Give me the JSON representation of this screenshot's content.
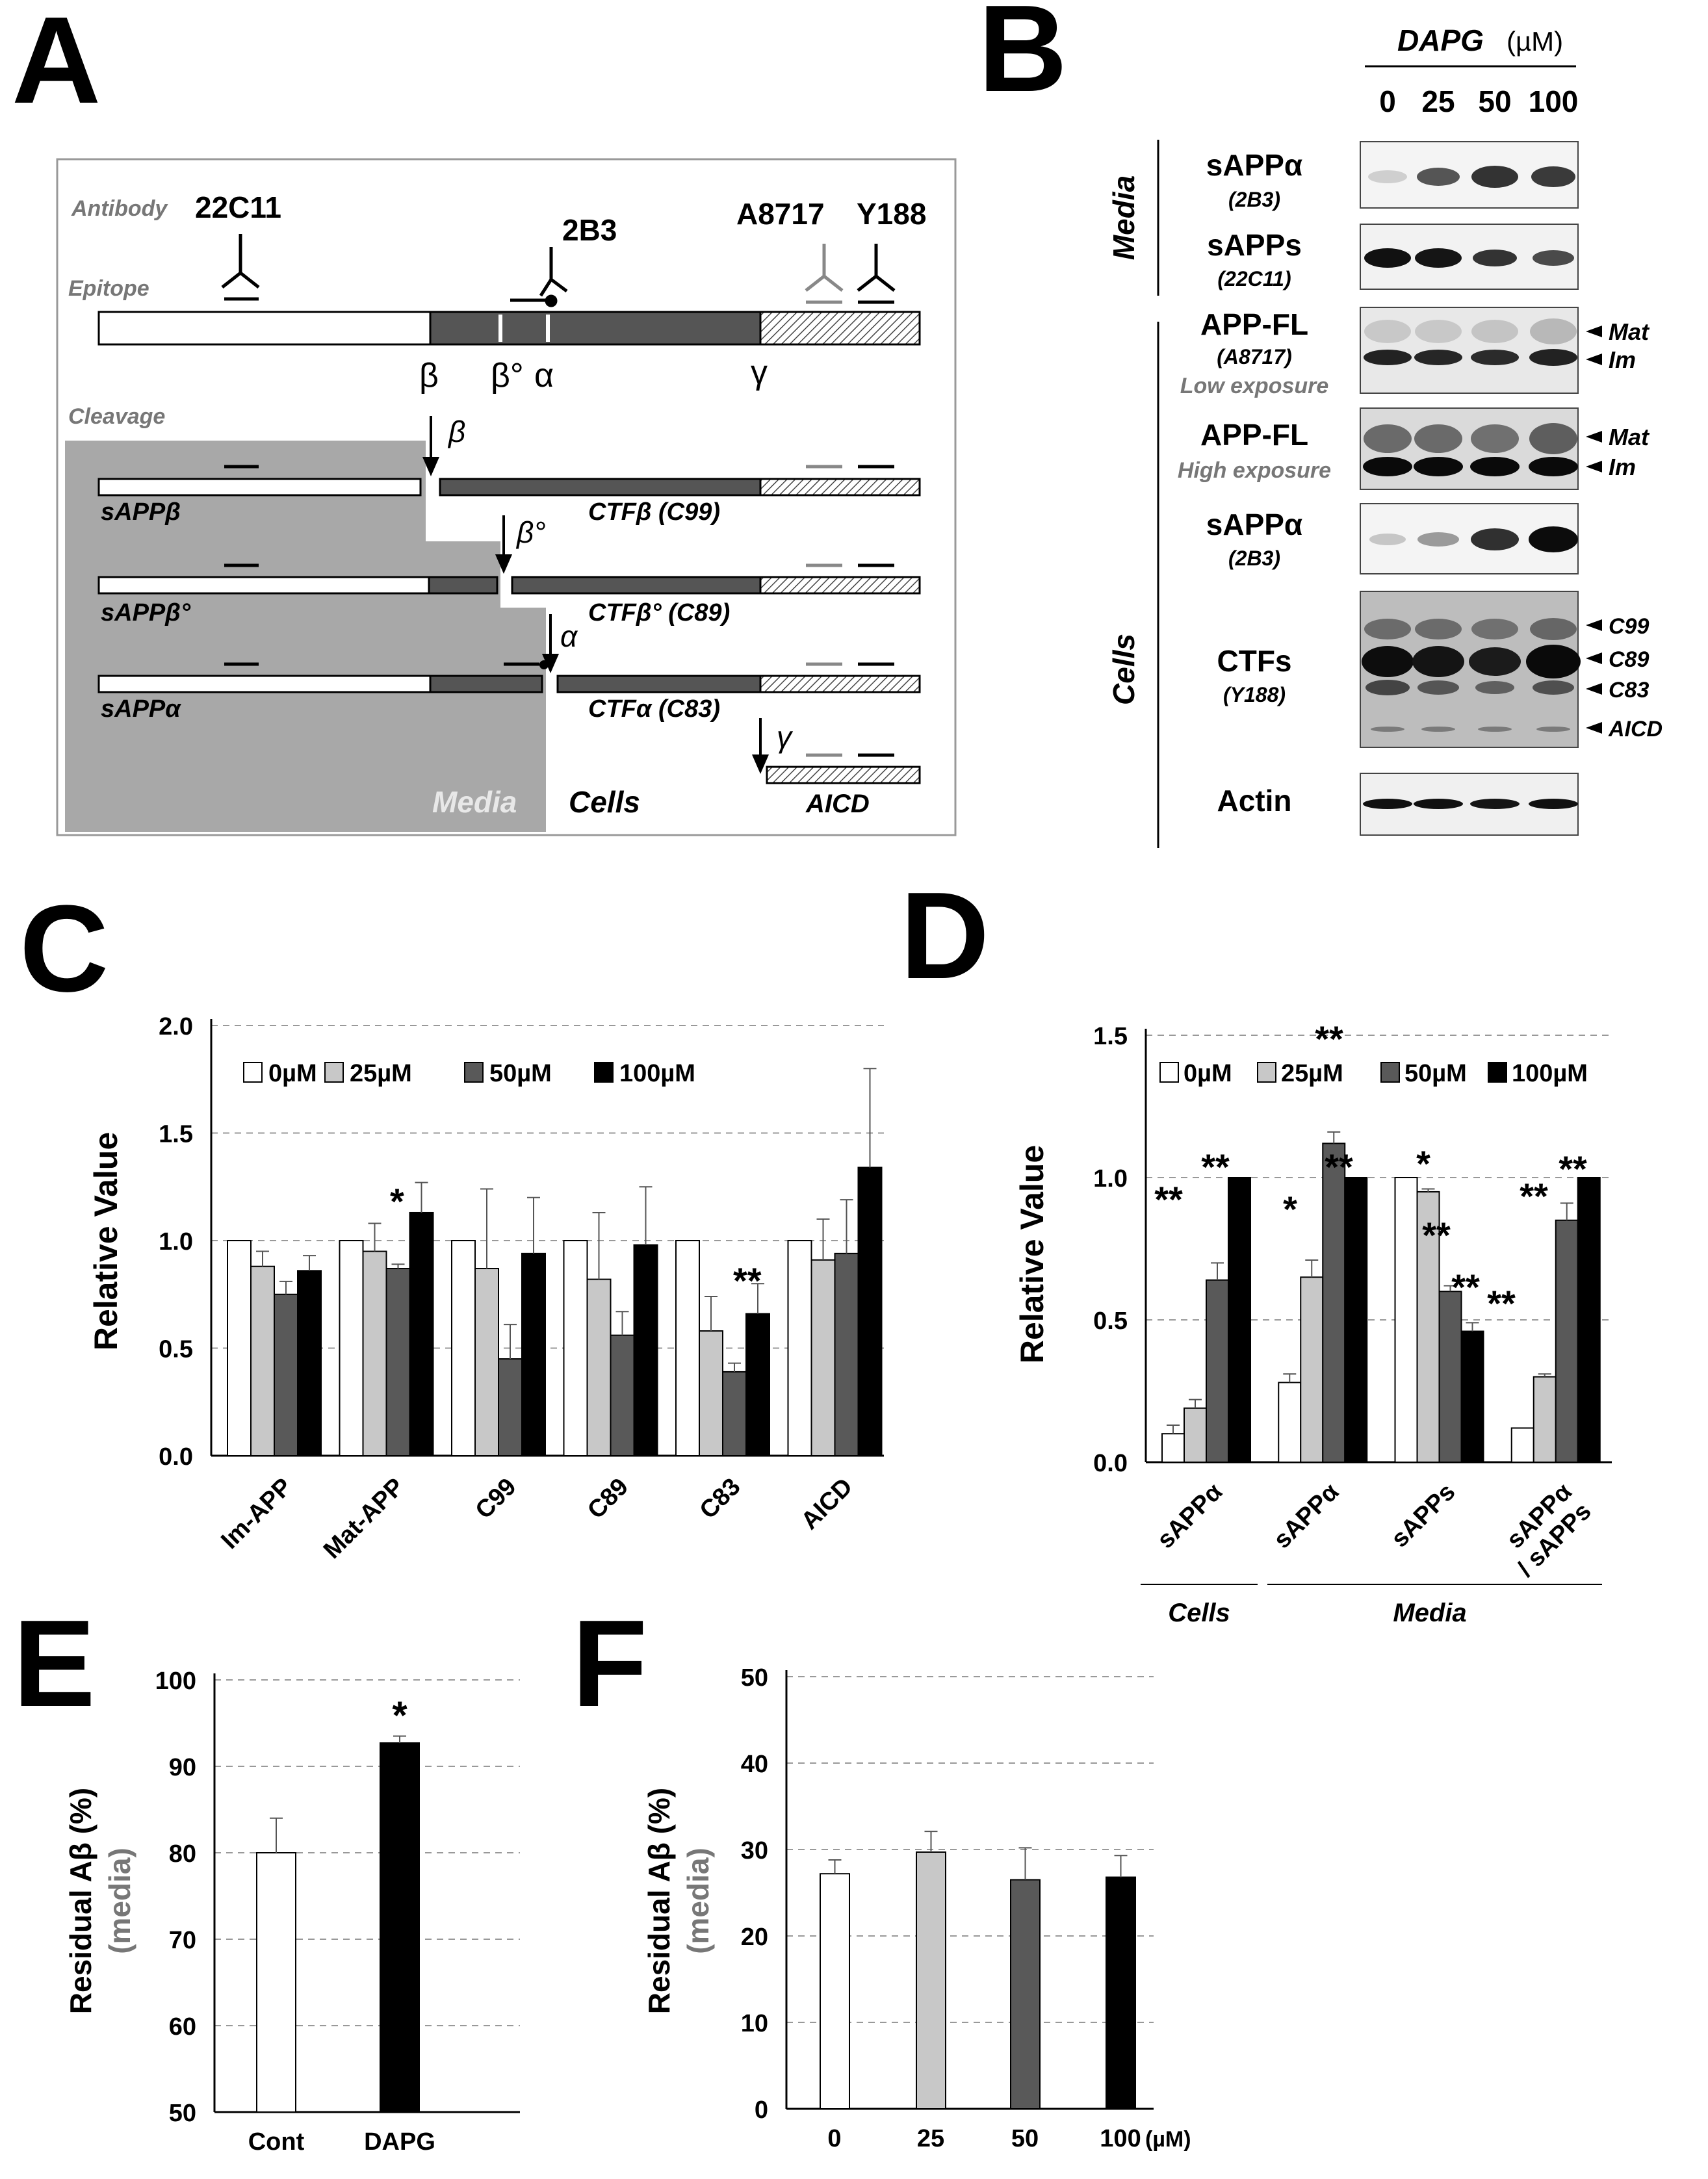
{
  "panel_letters": [
    "A",
    "B",
    "C",
    "D",
    "E",
    "F"
  ],
  "panelA": {
    "antibody_label": "Antibody",
    "epitope_label": "Epitope",
    "cleavage_label": "Cleavage",
    "antibodies": [
      "22C11",
      "2B3",
      "A8717",
      "Y188"
    ],
    "site_labels": [
      "β",
      "β°",
      "α",
      "γ"
    ],
    "cleave_beta": "β",
    "cleave_betaprime": "β°",
    "cleave_alpha": "α",
    "cleave_gamma": "γ",
    "frag_sAPPb": "sAPPβ",
    "frag_sAPPbp": "sAPPβ°",
    "frag_sAPPa": "sAPPα",
    "frag_CTFb": "CTFβ (C99)",
    "frag_CTFbp": "CTFβ° (C89)",
    "frag_CTFa": "CTFα (C83)",
    "frag_AICD": "AICD",
    "media_label": "Media",
    "cells_label": "Cells"
  },
  "panelB": {
    "treatment": "DAPG",
    "unit": "(µM)",
    "lanes": [
      "0",
      "25",
      "50",
      "100"
    ],
    "group_media": "Media",
    "group_cells": "Cells",
    "rows": [
      {
        "name": "sAPPα",
        "sub": "(2B3)"
      },
      {
        "name": "sAPPs",
        "sub": "(22C11)"
      },
      {
        "name": "APP-FL",
        "sub": "(A8717)",
        "note": "Low exposure"
      },
      {
        "name": "APP-FL",
        "note": "High exposure"
      },
      {
        "name": "sAPPα",
        "sub": "(2B3)"
      },
      {
        "name": "CTFs",
        "sub": "(Y188)"
      },
      {
        "name": "Actin"
      }
    ],
    "markers": {
      "mat": "Mat",
      "im": "Im",
      "c99": "C99",
      "c89": "C89",
      "c83": "C83",
      "aicd": "AICD"
    }
  },
  "chart_data": [
    {
      "panel": "C",
      "type": "bar",
      "ylabel": "Relative Value",
      "ylim": [
        0,
        2.0
      ],
      "yticks": [
        "0.0",
        "0.5",
        "1.0",
        "1.5",
        "2.0"
      ],
      "categories": [
        "Im-APP",
        "Mat-APP",
        "C99",
        "C89",
        "C83",
        "AICD"
      ],
      "legend": [
        "0µM",
        "25µM",
        "50µM",
        "100µM"
      ],
      "colors": [
        "#ffffff",
        "#c8c8c8",
        "#595959",
        "#000000"
      ],
      "series": [
        {
          "name": "0µM",
          "values": [
            1.0,
            1.0,
            1.0,
            1.0,
            1.0,
            1.0
          ],
          "errors": [
            0,
            0,
            0,
            0,
            0,
            0
          ]
        },
        {
          "name": "25µM",
          "values": [
            0.88,
            0.95,
            0.87,
            0.82,
            0.58,
            0.91
          ],
          "errors": [
            0.07,
            0.13,
            0.37,
            0.31,
            0.16,
            0.19
          ]
        },
        {
          "name": "50µM",
          "values": [
            0.75,
            0.87,
            0.45,
            0.56,
            0.39,
            0.94
          ],
          "errors": [
            0.06,
            0.02,
            0.16,
            0.11,
            0.04,
            0.25
          ]
        },
        {
          "name": "100µM",
          "values": [
            0.86,
            1.13,
            0.94,
            0.98,
            0.66,
            1.34
          ],
          "errors": [
            0.07,
            0.14,
            0.26,
            0.27,
            0.14,
            0.46
          ]
        }
      ],
      "annotations": [
        "*",
        "**"
      ]
    },
    {
      "panel": "D",
      "type": "bar",
      "ylabel": "Relative Value",
      "ylim": [
        0,
        1.5
      ],
      "yticks": [
        "0.0",
        "0.5",
        "1.0",
        "1.5"
      ],
      "categories": [
        "sAPPα",
        "sAPPα",
        "sAPPs",
        "sAPPα / sAPPs"
      ],
      "cat_line1": [
        "sAPPα",
        "sAPPα",
        "sAPPs",
        "sAPPα"
      ],
      "cat_line2": [
        "",
        "",
        "",
        "/ sAPPs"
      ],
      "groups": [
        "Cells",
        "Media"
      ],
      "legend": [
        "0µM",
        "25µM",
        "50µM",
        "100µM"
      ],
      "colors": [
        "#ffffff",
        "#c8c8c8",
        "#595959",
        "#000000"
      ],
      "series": [
        {
          "name": "0µM",
          "values": [
            0.1,
            0.28,
            1.0,
            0.12
          ],
          "errors": [
            0.03,
            0.03,
            0,
            0
          ]
        },
        {
          "name": "25µM",
          "values": [
            0.19,
            0.65,
            0.95,
            0.3
          ],
          "errors": [
            0.03,
            0.06,
            0.01,
            0.01
          ]
        },
        {
          "name": "50µM",
          "values": [
            0.64,
            1.12,
            0.6,
            0.85
          ],
          "errors": [
            0.06,
            0.04,
            0.02,
            0.06
          ]
        },
        {
          "name": "100µM",
          "values": [
            1.0,
            1.0,
            0.46,
            1.0
          ],
          "errors": [
            0,
            0,
            0.03,
            0
          ]
        }
      ],
      "annotations": [
        "**",
        "**",
        "*",
        "**",
        "**",
        "*",
        "**",
        "**",
        "**",
        "**",
        "**"
      ]
    },
    {
      "panel": "E",
      "type": "bar",
      "ylabel": "Residual Aβ (%)",
      "ylabel2": "(media)",
      "ylim": [
        50,
        100
      ],
      "yticks": [
        "50",
        "60",
        "70",
        "80",
        "90",
        "100"
      ],
      "categories": [
        "Cont",
        "DAPG"
      ],
      "values": [
        80,
        92.7
      ],
      "errors": [
        4,
        0.8
      ],
      "colors": [
        "#ffffff",
        "#000000"
      ],
      "annotations": [
        "*"
      ]
    },
    {
      "panel": "F",
      "type": "bar",
      "ylabel": "Residual Aβ (%)",
      "ylabel2": "(media)",
      "ylim": [
        0,
        50
      ],
      "yticks": [
        "0",
        "10",
        "20",
        "30",
        "40",
        "50"
      ],
      "categories": [
        "0",
        "25",
        "50",
        "100"
      ],
      "xunit": "(µM)",
      "values": [
        27.2,
        29.7,
        26.5,
        26.8
      ],
      "errors": [
        1.6,
        2.4,
        3.7,
        2.5
      ],
      "colors": [
        "#ffffff",
        "#c8c8c8",
        "#595959",
        "#000000"
      ]
    }
  ]
}
